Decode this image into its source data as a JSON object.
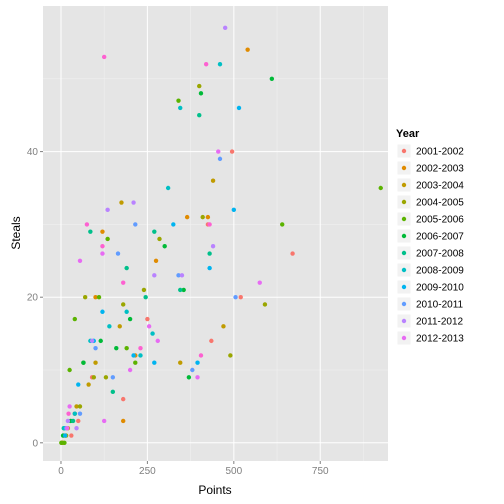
{
  "chart_data": {
    "type": "scatter",
    "title": "",
    "xlabel": "Points",
    "ylabel": "Steals",
    "xlim": [
      -52,
      946
    ],
    "ylim": [
      -2.5,
      60
    ],
    "x_ticks": [
      0,
      250,
      500,
      750
    ],
    "y_ticks": [
      0,
      20,
      40
    ],
    "grid": true,
    "legend_title": "Year",
    "legend_position": "right",
    "series": [
      {
        "name": "2001-2002",
        "color": "#F8766D",
        "points": [
          [
            2,
            0
          ],
          [
            8,
            1
          ],
          [
            30,
            1
          ],
          [
            50,
            3
          ],
          [
            90,
            9
          ],
          [
            180,
            6
          ],
          [
            250,
            17
          ],
          [
            425,
            30
          ],
          [
            435,
            14
          ],
          [
            495,
            40
          ],
          [
            520,
            20
          ],
          [
            670,
            26
          ]
        ]
      },
      {
        "name": "2002-2003",
        "color": "#E08B00",
        "points": [
          [
            4,
            0
          ],
          [
            12,
            1
          ],
          [
            40,
            4
          ],
          [
            100,
            20
          ],
          [
            120,
            29
          ],
          [
            180,
            3
          ],
          [
            215,
            12
          ],
          [
            275,
            25
          ],
          [
            365,
            31
          ],
          [
            425,
            31
          ],
          [
            540,
            54
          ]
        ]
      },
      {
        "name": "2003-2004",
        "color": "#C09B00",
        "points": [
          [
            5,
            0
          ],
          [
            20,
            2
          ],
          [
            45,
            5
          ],
          [
            80,
            8
          ],
          [
            100,
            11
          ],
          [
            170,
            16
          ],
          [
            175,
            33
          ],
          [
            345,
            11
          ],
          [
            440,
            36
          ],
          [
            470,
            16
          ]
        ]
      },
      {
        "name": "2004-2005",
        "color": "#9AA600",
        "points": [
          [
            3,
            0
          ],
          [
            15,
            1
          ],
          [
            55,
            5
          ],
          [
            70,
            20
          ],
          [
            95,
            9
          ],
          [
            130,
            9
          ],
          [
            180,
            19
          ],
          [
            240,
            21
          ],
          [
            285,
            28
          ],
          [
            400,
            49
          ],
          [
            410,
            31
          ],
          [
            490,
            12
          ],
          [
            590,
            19
          ]
        ]
      },
      {
        "name": "2005-2006",
        "color": "#5BB300",
        "points": [
          [
            1,
            0
          ],
          [
            10,
            0
          ],
          [
            25,
            10
          ],
          [
            40,
            17
          ],
          [
            65,
            11
          ],
          [
            110,
            20
          ],
          [
            135,
            28
          ],
          [
            190,
            13
          ],
          [
            215,
            11
          ],
          [
            340,
            47
          ],
          [
            640,
            30
          ],
          [
            925,
            35
          ]
        ]
      },
      {
        "name": "2006-2007",
        "color": "#00BA38",
        "points": [
          [
            6,
            1
          ],
          [
            28,
            3
          ],
          [
            65,
            11
          ],
          [
            115,
            14
          ],
          [
            160,
            13
          ],
          [
            200,
            17
          ],
          [
            300,
            27
          ],
          [
            355,
            21
          ],
          [
            370,
            9
          ],
          [
            405,
            48
          ],
          [
            610,
            50
          ]
        ]
      },
      {
        "name": "2007-2008",
        "color": "#00C08B",
        "points": [
          [
            8,
            2
          ],
          [
            35,
            3
          ],
          [
            85,
            29
          ],
          [
            150,
            7
          ],
          [
            190,
            24
          ],
          [
            245,
            20
          ],
          [
            270,
            29
          ],
          [
            345,
            21
          ],
          [
            400,
            45
          ],
          [
            430,
            26
          ]
        ]
      },
      {
        "name": "2008-2009",
        "color": "#00BFC4",
        "points": [
          [
            10,
            2
          ],
          [
            40,
            4
          ],
          [
            85,
            14
          ],
          [
            140,
            16
          ],
          [
            190,
            18
          ],
          [
            230,
            12
          ],
          [
            265,
            15
          ],
          [
            310,
            35
          ],
          [
            345,
            46
          ],
          [
            460,
            52
          ]
        ]
      },
      {
        "name": "2009-2010",
        "color": "#00B4F0",
        "points": [
          [
            12,
            1
          ],
          [
            50,
            8
          ],
          [
            95,
            14
          ],
          [
            120,
            18
          ],
          [
            210,
            12
          ],
          [
            270,
            11
          ],
          [
            325,
            30
          ],
          [
            395,
            11
          ],
          [
            430,
            24
          ],
          [
            500,
            32
          ],
          [
            515,
            46
          ]
        ]
      },
      {
        "name": "2010-2011",
        "color": "#619CFF",
        "points": [
          [
            15,
            2
          ],
          [
            55,
            4
          ],
          [
            100,
            13
          ],
          [
            150,
            9
          ],
          [
            165,
            26
          ],
          [
            215,
            30
          ],
          [
            340,
            23
          ],
          [
            380,
            10
          ],
          [
            460,
            39
          ],
          [
            505,
            20
          ]
        ]
      },
      {
        "name": "2011-2012",
        "color": "#B983FF",
        "points": [
          [
            20,
            3
          ],
          [
            45,
            2
          ],
          [
            90,
            14
          ],
          [
            135,
            32
          ],
          [
            210,
            33
          ],
          [
            270,
            23
          ],
          [
            350,
            23
          ],
          [
            440,
            27
          ],
          [
            475,
            57
          ]
        ]
      },
      {
        "name": "2012-2013",
        "color": "#E76BF3",
        "points": [
          [
            18,
            2
          ],
          [
            25,
            5
          ],
          [
            55,
            25
          ],
          [
            120,
            26
          ],
          [
            125,
            3
          ],
          [
            200,
            10
          ],
          [
            255,
            16
          ],
          [
            280,
            14
          ],
          [
            395,
            9
          ],
          [
            455,
            40
          ],
          [
            575,
            22
          ]
        ]
      },
      {
        "name": "",
        "color": "#FD61D1",
        "points": [
          [
            22,
            4
          ],
          [
            75,
            30
          ],
          [
            120,
            27
          ],
          [
            125,
            53
          ],
          [
            180,
            22
          ],
          [
            230,
            13
          ],
          [
            405,
            12
          ],
          [
            420,
            52
          ],
          [
            430,
            30
          ]
        ]
      }
    ]
  }
}
